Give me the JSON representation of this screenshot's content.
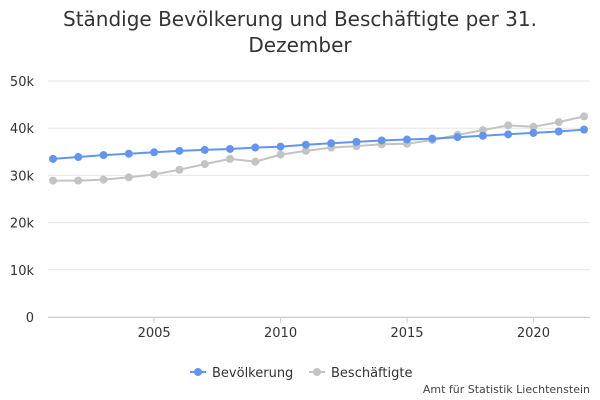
{
  "chart_data": {
    "type": "line",
    "title": "Ständige Bevölkerung und Beschäftigte per 31. Dezember",
    "xlabel": "",
    "ylabel": "",
    "x": [
      2001,
      2002,
      2003,
      2004,
      2005,
      2006,
      2007,
      2008,
      2009,
      2010,
      2011,
      2012,
      2013,
      2014,
      2015,
      2016,
      2017,
      2018,
      2019,
      2020,
      2021,
      2022
    ],
    "xlim": [
      2001,
      2022
    ],
    "ylim": [
      0,
      50000
    ],
    "x_ticks": [
      2005,
      2010,
      2015,
      2020
    ],
    "y_ticks": [
      0,
      10000,
      20000,
      30000,
      40000,
      50000
    ],
    "y_tick_labels": [
      "0",
      "10k",
      "20k",
      "30k",
      "40k",
      "50k"
    ],
    "grid": "horizontal",
    "legend_position": "bottom",
    "series": [
      {
        "name": "Bevölkerung",
        "color": "#6495ed",
        "values": [
          33500,
          33900,
          34300,
          34600,
          34900,
          35200,
          35400,
          35600,
          35900,
          36100,
          36500,
          36800,
          37100,
          37400,
          37600,
          37800,
          38100,
          38400,
          38700,
          39000,
          39300,
          39700
        ]
      },
      {
        "name": "Beschäftigte",
        "color": "#c3c3c3",
        "values": [
          28900,
          28900,
          29100,
          29600,
          30200,
          31200,
          32400,
          33500,
          32900,
          34400,
          35200,
          35900,
          36200,
          36600,
          36700,
          37500,
          38600,
          39600,
          40600,
          40300,
          41300,
          42500
        ]
      }
    ]
  },
  "credit": "Amt für Statistik Liechtenstein"
}
